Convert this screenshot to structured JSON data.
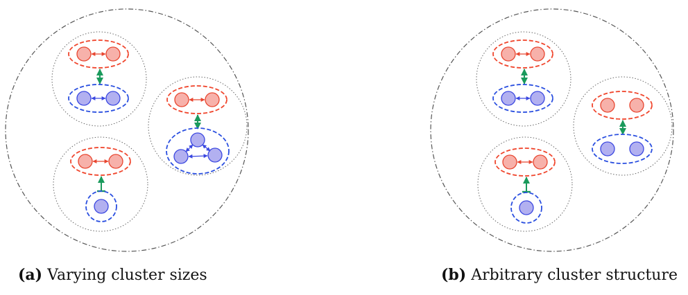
{
  "colors": {
    "outer_boundary": "#555555",
    "cluster_boundary": "#666666",
    "red_group_border": "#f0462d",
    "red_node_fill": "#f7b1aa",
    "red_node_stroke": "#e8452f",
    "blue_group_border": "#2a4fe0",
    "blue_node_fill": "#b2b0f0",
    "blue_node_stroke": "#3a47e0",
    "link_green": "#1a9a5c"
  },
  "captions": {
    "a": {
      "tag": "(a)",
      "text": "Varying cluster sizes"
    },
    "b": {
      "tag": "(b)",
      "text": "Arbitrary cluster structure"
    }
  }
}
